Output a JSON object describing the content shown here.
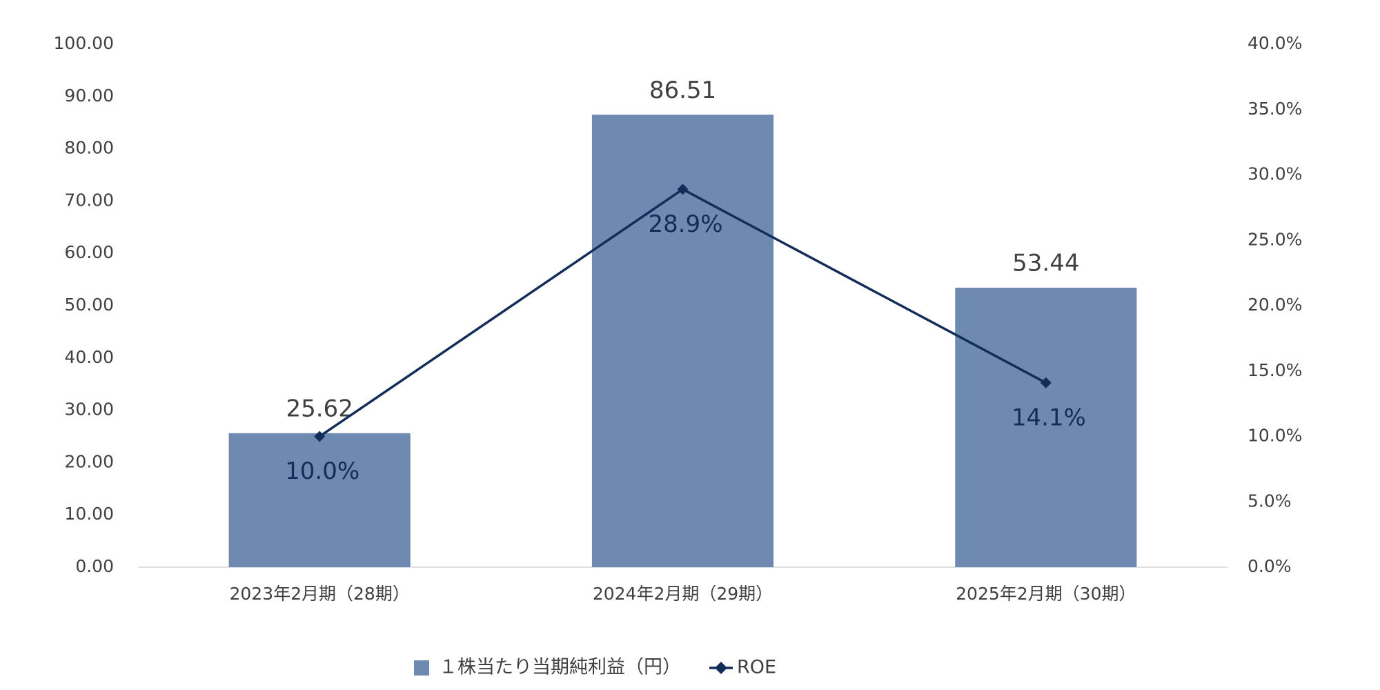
{
  "chart_data": {
    "type": "combo",
    "categories": [
      "2023年2月期（28期）",
      "2024年2月期（29期）",
      "2025年2月期（30期）"
    ],
    "series": [
      {
        "name": "１株当たり当期純利益（円）",
        "type": "bar",
        "color": "#6f8ab0",
        "values": [
          25.62,
          86.51,
          53.44
        ]
      },
      {
        "name": "ROE",
        "type": "line",
        "axis": "y2",
        "color": "#132d5a",
        "values": [
          10.0,
          28.9,
          14.1
        ],
        "value_labels": [
          "10.0%",
          "28.9%",
          "14.1%"
        ]
      }
    ],
    "ylim": [
      0,
      100
    ],
    "yticks": [
      {
        "value": 0,
        "label": "0.00"
      },
      {
        "value": 10,
        "label": "10.00"
      },
      {
        "value": 20,
        "label": "20.00"
      },
      {
        "value": 30,
        "label": "30.00"
      },
      {
        "value": 40,
        "label": "40.00"
      },
      {
        "value": 50,
        "label": "50.00"
      },
      {
        "value": 60,
        "label": "60.00"
      },
      {
        "value": 70,
        "label": "70.00"
      },
      {
        "value": 80,
        "label": "80.00"
      },
      {
        "value": 90,
        "label": "90.00"
      },
      {
        "value": 100,
        "label": "100.00"
      }
    ],
    "y2lim": [
      0,
      40
    ],
    "y2ticks": [
      {
        "value": 0,
        "label": "0.0%"
      },
      {
        "value": 5,
        "label": "5.0%"
      },
      {
        "value": 10,
        "label": "10.0%"
      },
      {
        "value": 15,
        "label": "15.0%"
      },
      {
        "value": 20,
        "label": "20.0%"
      },
      {
        "value": 25,
        "label": "25.0%"
      },
      {
        "value": 30,
        "label": "30.0%"
      },
      {
        "value": 35,
        "label": "35.0%"
      },
      {
        "value": 40,
        "label": "40.0%"
      }
    ],
    "grid": false,
    "legend": "bottom"
  }
}
